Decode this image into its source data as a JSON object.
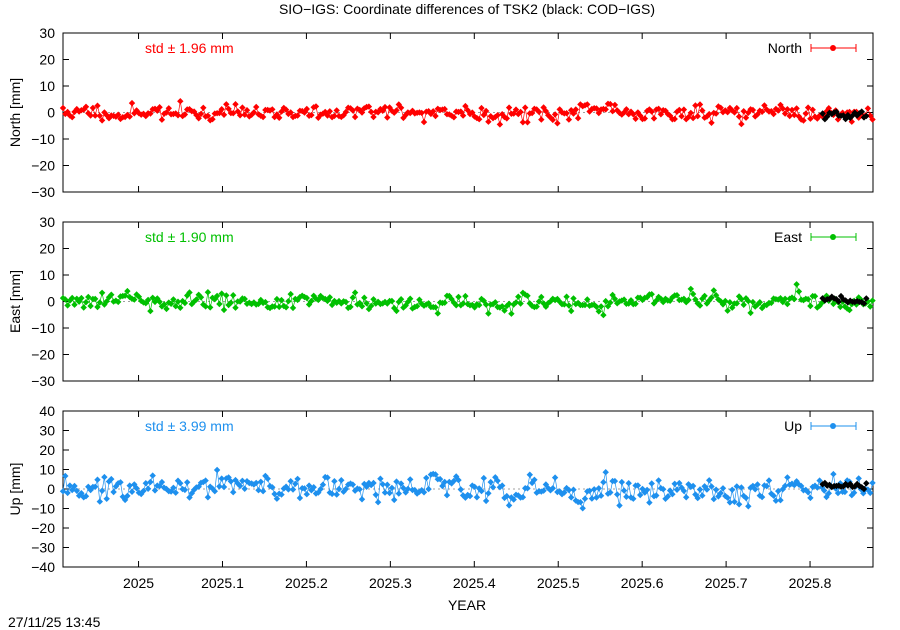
{
  "title": "SIO−IGS: Coordinate differences of TSK2 (black: COD−IGS)",
  "timestamp": "27/11/25 13:45",
  "colors": {
    "north": "#ff0000",
    "east": "#00c000",
    "up": "#1e90ee",
    "cod": "#000000",
    "zero": "#a0a0a0"
  },
  "chart_data": [
    {
      "type": "scatter",
      "name": "north",
      "ylabel": "North [mm]",
      "legend": "North",
      "legend_position": "top-right",
      "std_label": "std ± 1.96 mm",
      "ylim": [
        -30,
        30
      ],
      "yticks": [
        "30",
        "20",
        "10",
        "0",
        "−10",
        "−20",
        "−30"
      ],
      "ytick_values": [
        30,
        20,
        10,
        0,
        -10,
        -20,
        -30
      ],
      "xlim": [
        2024.91,
        2025.875
      ],
      "sio": {
        "x0": 2024.91,
        "dx": 0.002739726,
        "amplitude": 1.96,
        "seed": 11
      },
      "cod": {
        "x0": 2025.815,
        "dx": 0.002739726,
        "count": 20,
        "mean": -1.0,
        "amplitude": 0.9,
        "seed": 21
      }
    },
    {
      "type": "scatter",
      "name": "east",
      "ylabel": "East [mm]",
      "legend": "East",
      "legend_position": "top-right",
      "std_label": "std ± 1.90 mm",
      "ylim": [
        -30,
        30
      ],
      "yticks": [
        "30",
        "20",
        "10",
        "0",
        "−10",
        "−20",
        "−30"
      ],
      "ytick_values": [
        30,
        20,
        10,
        0,
        -10,
        -20,
        -30
      ],
      "xlim": [
        2024.91,
        2025.875
      ],
      "sio": {
        "x0": 2024.91,
        "dx": 0.002739726,
        "amplitude": 1.9,
        "seed": 33
      },
      "cod": {
        "x0": 2025.815,
        "dx": 0.002739726,
        "count": 20,
        "mean": 0.5,
        "amplitude": 1.0,
        "seed": 43
      }
    },
    {
      "type": "scatter",
      "name": "up",
      "ylabel": "Up [mm]",
      "legend": "Up",
      "legend_position": "top-right",
      "std_label": "std ± 3.99 mm",
      "ylim": [
        -40,
        40
      ],
      "yticks": [
        "40",
        "30",
        "20",
        "10",
        "0",
        "−10",
        "−20",
        "−30",
        "−40"
      ],
      "ytick_values": [
        40,
        30,
        20,
        10,
        0,
        -10,
        -20,
        -30,
        -40
      ],
      "xlim": [
        2024.91,
        2025.875
      ],
      "sio": {
        "x0": 2024.91,
        "dx": 0.002739726,
        "amplitude": 3.99,
        "seed": 55
      },
      "cod": {
        "x0": 2025.815,
        "dx": 0.002739726,
        "count": 20,
        "mean": 1.5,
        "amplitude": 1.2,
        "seed": 65
      }
    }
  ],
  "xaxis": {
    "label": "YEAR",
    "ticks": [
      "2025",
      "2025.1",
      "2025.2",
      "2025.3",
      "2025.4",
      "2025.5",
      "2025.6",
      "2025.7",
      "2025.8"
    ],
    "tick_values": [
      2025.0,
      2025.1,
      2025.2,
      2025.3,
      2025.4,
      2025.5,
      2025.6,
      2025.7,
      2025.8
    ]
  }
}
